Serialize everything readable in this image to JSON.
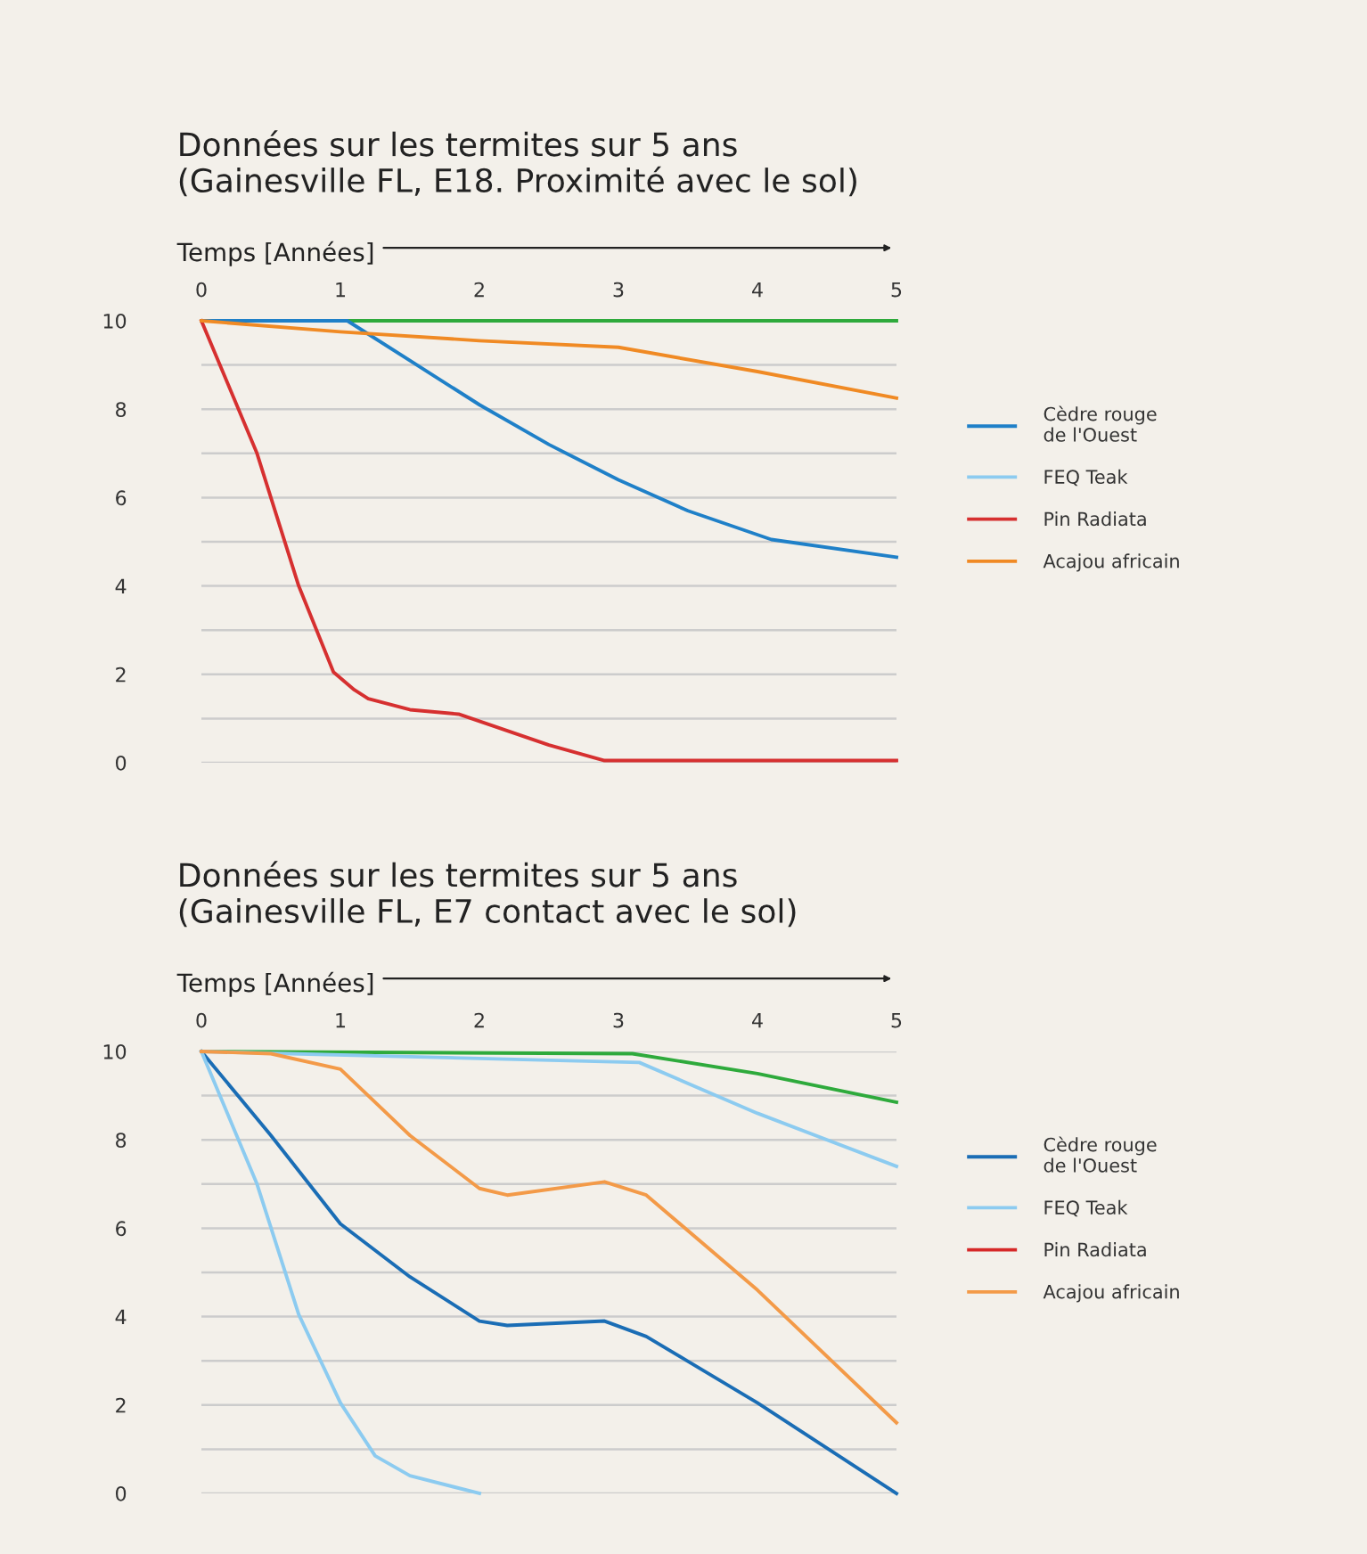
{
  "chart_data": [
    {
      "type": "line",
      "title": "Données sur les termites sur 5 ans\n(Gainesville FL, E18. Proximité avec le sol)",
      "xlabel": "Temps [Années]",
      "xlim": [
        0,
        5
      ],
      "xticks": [
        0,
        1,
        2,
        3,
        4,
        5
      ],
      "ylim": [
        0,
        10
      ],
      "yticks": [
        0,
        {
          "value": 1,
          "label": null
        },
        2,
        {
          "value": 3,
          "label": null
        },
        4,
        {
          "value": 5,
          "label": null
        },
        6,
        {
          "value": 7,
          "label": null
        },
        8,
        {
          "value": 9,
          "label": null
        },
        10
      ],
      "grid": "y",
      "legend": "right",
      "series": [
        {
          "color": "#2eaa3c",
          "x": [
            0,
            5
          ],
          "values": [
            10,
            10
          ]
        },
        {
          "name": "Cèdre rouge\nde l'Ouest",
          "color": "#1f80c8",
          "x": [
            0,
            1.05,
            1.5,
            2,
            2.5,
            3,
            3.5,
            4.1,
            5
          ],
          "values": [
            10,
            10,
            9.1,
            8.1,
            7.2,
            6.4,
            5.7,
            5.05,
            4.65
          ]
        },
        {
          "name": "FEQ Teak",
          "color": "#8ccbf0"
        },
        {
          "name": "Pin Radiata",
          "color": "#d63030",
          "x": [
            0,
            0.4,
            0.7,
            0.95,
            1.1,
            1.2,
            1.5,
            1.85,
            2.5,
            2.9,
            5
          ],
          "values": [
            10,
            7.0,
            4.0,
            2.05,
            1.65,
            1.45,
            1.2,
            1.1,
            0.4,
            0.05,
            0.05
          ]
        },
        {
          "name": "Acajou africain",
          "color": "#f08a24",
          "x": [
            0,
            1,
            2,
            3,
            4,
            5
          ],
          "values": [
            10,
            9.75,
            9.55,
            9.4,
            8.85,
            8.25
          ]
        }
      ]
    },
    {
      "type": "line",
      "title": "Données sur les termites sur 5 ans\n(Gainesville FL, E7 contact avec le sol)",
      "xlabel": "Temps [Années]",
      "xlim": [
        0,
        5
      ],
      "xticks": [
        0,
        1,
        2,
        3,
        4,
        5
      ],
      "ylim": [
        0,
        10
      ],
      "yticks": [
        0,
        {
          "value": 1,
          "label": null
        },
        2,
        {
          "value": 3,
          "label": null
        },
        4,
        {
          "value": 5,
          "label": null
        },
        6,
        {
          "value": 7,
          "label": null
        },
        8,
        {
          "value": 9,
          "label": null
        },
        10
      ],
      "grid": "y",
      "legend": "right",
      "series": [
        {
          "color": "#2eaa3c",
          "x": [
            0,
            3.1,
            4,
            5
          ],
          "values": [
            10,
            9.95,
            9.5,
            8.85
          ]
        },
        {
          "name": "Cèdre rouge\nde l'Ouest",
          "color": "#1a6db5",
          "x": [
            0,
            0.5,
            1,
            1.5,
            2,
            2.2,
            2.9,
            3.2,
            4,
            5
          ],
          "values": [
            10,
            8.1,
            6.1,
            4.9,
            3.9,
            3.8,
            3.9,
            3.55,
            2.05,
            0
          ]
        },
        {
          "name": "FEQ Teak",
          "color": "#8ccbf0",
          "x": [
            0,
            3.15,
            4,
            5
          ],
          "values": [
            10,
            9.75,
            8.6,
            7.4
          ]
        },
        {
          "color": "#8ccbf0",
          "x": [
            0,
            0.4,
            0.7,
            1,
            1.25,
            1.5,
            2
          ],
          "values": [
            10,
            7.0,
            4.05,
            2.05,
            0.85,
            0.4,
            0
          ]
        },
        {
          "name": "Pin Radiata",
          "color": "#d62828"
        },
        {
          "name": "Acajou africain",
          "color": "#f39a48",
          "x": [
            0,
            0.5,
            1,
            1.5,
            2,
            2.2,
            2.9,
            3.2,
            4,
            5
          ],
          "values": [
            10,
            9.95,
            9.6,
            8.1,
            6.9,
            6.75,
            7.05,
            6.75,
            4.6,
            1.6
          ]
        }
      ]
    }
  ]
}
